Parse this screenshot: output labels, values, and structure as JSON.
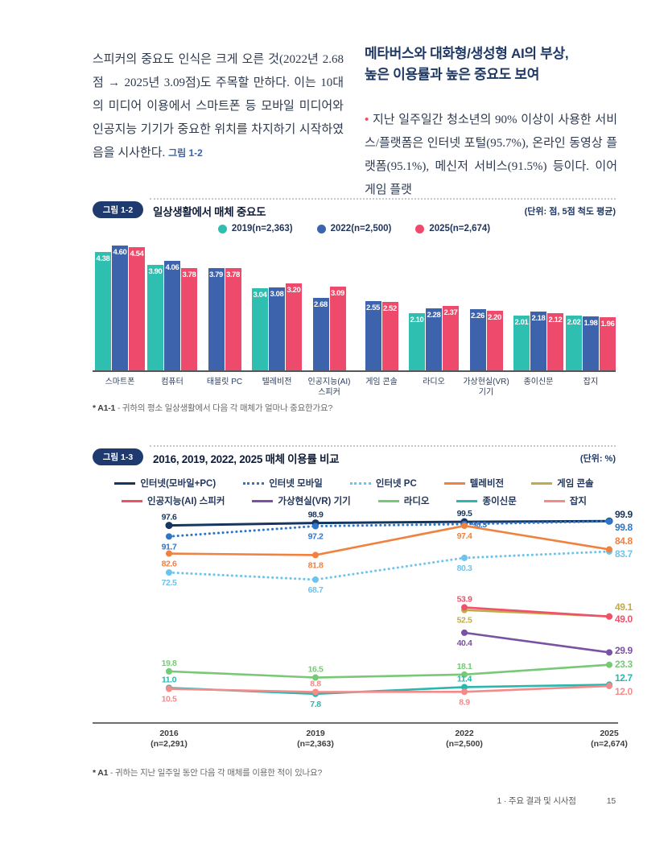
{
  "page": {
    "footer": {
      "section": "1 · 주요 결과 및 시사점",
      "page_number": "15"
    }
  },
  "intro": {
    "left_paragraph": "스피커의 중요도 인식은 크게 오른 것(2022년 2.68점 → 2025년 3.09점)도 주목할 만하다. 이는 10대의 미디어 이용에서 스마트폰 등 모바일 미디어와 인공지능 기기가 중요한 위치를 차지하기 시작하였음을 시사한다. ",
    "left_figure_ref": "그림 1-2",
    "right_heading_line1": "메타버스와 대화형/생성형 AI의 부상,",
    "right_heading_line2": "높은 이용률과 높은 중요도 보여",
    "right_bullet": "•",
    "right_paragraph": "지난 일주일간 청소년의 90% 이상이 사용한 서비스/플랫폼은 인터넷 포털(95.7%), 온라인 동영상 플랫폼(95.1%), 메신저 서비스(91.5%) 등이다. 이어 게임 플랫"
  },
  "figure2": {
    "badge": "그림 1-2",
    "title": "일상생활에서 매체 중요도",
    "unit": "(단위: 점, 5점 척도 평균)",
    "footnote_label": "* A1-1",
    "footnote_text": " - 귀하의 평소 일상생활에서 다음 각 매체가 얼마나 중요한가요?"
  },
  "figure3": {
    "badge": "그림 1-3",
    "title": "2016, 2019, 2022, 2025 매체 이용률 비교",
    "unit": "(단위: %)",
    "footnote_label": "* A1",
    "footnote_text": " - 귀하는 지난 일주일 동안 다음 각 매체를 이용한 적이 있나요?"
  },
  "chart_data": [
    {
      "type": "bar",
      "title": "일상생활에서 매체 중요도",
      "unit": "점, 5점 척도 평균",
      "ylim": [
        0,
        5
      ],
      "categories": [
        "스마트폰",
        "컴퓨터",
        "태블릿 PC",
        "텔레비전",
        "인공지능(AI) 스피커",
        "게임 콘솔",
        "라디오",
        "가상현실(VR) 기기",
        "종이신문",
        "잡지"
      ],
      "series": [
        {
          "name": "2019(n=2,363)",
          "color": "#2ebfb0",
          "values": [
            4.38,
            3.9,
            null,
            3.04,
            null,
            null,
            2.1,
            null,
            2.01,
            2.02
          ]
        },
        {
          "name": "2022(n=2,500)",
          "color": "#3d63ac",
          "values": [
            4.6,
            4.06,
            3.79,
            3.08,
            2.68,
            2.55,
            2.28,
            2.26,
            2.18,
            1.98
          ]
        },
        {
          "name": "2025(n=2,674)",
          "color": "#ee4a6b",
          "values": [
            4.54,
            3.78,
            3.78,
            3.2,
            3.09,
            2.52,
            2.37,
            2.2,
            2.12,
            1.96
          ]
        }
      ]
    },
    {
      "type": "line",
      "title": "2016, 2019, 2022, 2025 매체 이용률 비교",
      "unit": "%",
      "ylim": [
        0,
        100
      ],
      "x_labels": [
        [
          "2016",
          "(n=2,291)"
        ],
        [
          "2019",
          "(n=2,363)"
        ],
        [
          "2022",
          "(n=2,500)"
        ],
        [
          "2025",
          "(n=2,674)"
        ]
      ],
      "series": [
        {
          "name": "인터넷(모바일+PC)",
          "color": "#17365d",
          "style": "solid",
          "values": [
            97.6,
            98.9,
            99.5,
            99.9
          ]
        },
        {
          "name": "인터넷 모바일",
          "color": "#2e75c8",
          "style": "dotted",
          "values": [
            91.7,
            97.2,
            98.3,
            99.8
          ]
        },
        {
          "name": "인터넷 PC",
          "color": "#6cc4ec",
          "style": "dotted",
          "values": [
            72.5,
            68.7,
            80.3,
            83.7
          ]
        },
        {
          "name": "텔레비전",
          "color": "#f0813e",
          "style": "solid",
          "values": [
            82.6,
            81.8,
            97.4,
            84.8
          ]
        },
        {
          "name": "게임 콘솔",
          "color": "#c1ab49",
          "style": "solid",
          "values": [
            null,
            null,
            52.5,
            49.1
          ]
        },
        {
          "name": "인공지능(AI) 스피커",
          "color": "#ef5169",
          "style": "solid",
          "values": [
            null,
            null,
            53.9,
            49.0
          ]
        },
        {
          "name": "가상현실(VR) 기기",
          "color": "#7a52a3",
          "style": "solid",
          "values": [
            null,
            null,
            40.4,
            29.9
          ]
        },
        {
          "name": "라디오",
          "color": "#79c877",
          "style": "solid",
          "values": [
            19.8,
            16.5,
            18.1,
            23.3
          ]
        },
        {
          "name": "종이신문",
          "color": "#29b7ae",
          "style": "solid",
          "values": [
            11.0,
            7.8,
            11.4,
            12.7
          ]
        },
        {
          "name": "잡지",
          "color": "#f48b8b",
          "style": "solid",
          "values": [
            10.5,
            8.8,
            8.9,
            12.0
          ]
        }
      ]
    }
  ]
}
